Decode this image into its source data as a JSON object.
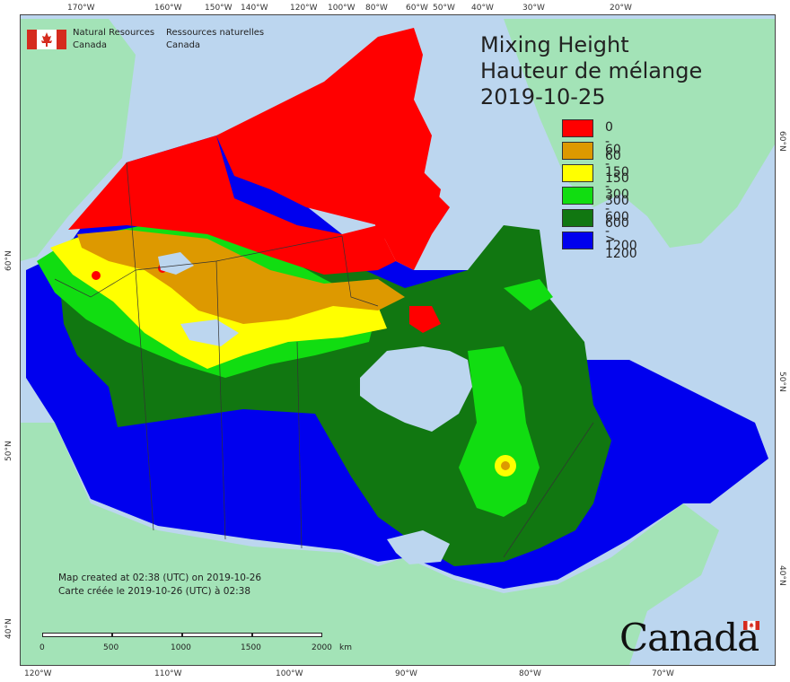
{
  "header": {
    "agency_en_1": "Natural Resources",
    "agency_en_2": "Canada",
    "agency_fr_1": "Ressources naturelles",
    "agency_fr_2": "Canada"
  },
  "title": {
    "line1": "Mixing Height",
    "line2": "Hauteur de mélange",
    "date": "2019-10-25"
  },
  "legend": [
    {
      "label": "0 - 60",
      "color": "#ff0000"
    },
    {
      "label": "60 - 150",
      "color": "#dd9900"
    },
    {
      "label": "150 - 300",
      "color": "#ffff00"
    },
    {
      "label": "300 - 600",
      "color": "#11dd11"
    },
    {
      "label": "600 - 1200",
      "color": "#117711"
    },
    {
      "label": "> 1200",
      "color": "#0000ee"
    }
  ],
  "colors": {
    "ocean": "#bcd6ef",
    "land_outside": "#a3e3b7"
  },
  "footer": {
    "created_en": "Map created at 02:38 (UTC) on 2019-10-26",
    "created_fr": "Carte créée le 2019-10-26 (UTC) à 02:38",
    "wordmark": "Canada"
  },
  "scale": {
    "labels": [
      "0",
      "500",
      "1000",
      "1500",
      "2000",
      "km"
    ]
  },
  "graticule": {
    "top": [
      "170°W",
      "160°W",
      "150°W",
      "140°W",
      "120°W",
      "100°W",
      "80°W",
      "60°W",
      "50°W",
      "40°W",
      "30°W",
      "20°W"
    ],
    "bottom": [
      "120°W",
      "110°W",
      "100°W",
      "90°W",
      "80°W",
      "70°W"
    ],
    "left": [
      "60°N",
      "50°N",
      "40°N"
    ],
    "right": [
      "60°N",
      "50°N",
      "40°N"
    ]
  }
}
